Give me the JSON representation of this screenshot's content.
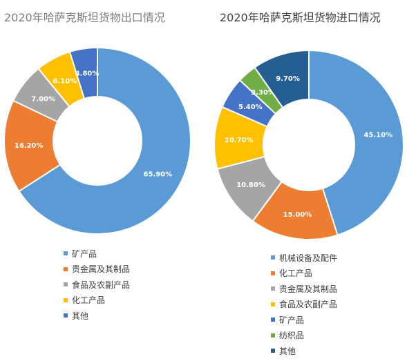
{
  "chart_data": [
    {
      "type": "pie",
      "title": "2020年哈萨克斯坦货物出口情况",
      "legend_position": "bottom",
      "categories": [
        "矿产品",
        "贵金属及其制品",
        "食品及农副产品",
        "化工产品",
        "其他"
      ],
      "values": [
        65.9,
        16.2,
        7.0,
        6.1,
        4.8
      ],
      "labels": [
        "65.90%",
        "16.20%",
        "7.00%",
        "6.10%",
        "4.80%"
      ],
      "colors": [
        "#5b9bd5",
        "#ed7d31",
        "#a5a5a5",
        "#ffc000",
        "#4472c4"
      ]
    },
    {
      "type": "pie",
      "title": "2020年哈萨克斯坦货物进口情况",
      "legend_position": "bottom",
      "categories": [
        "机械设备及配件",
        "化工产品",
        "贵金属及其制品",
        "食品及农副产品",
        "矿产品",
        "纺织品",
        "其他"
      ],
      "values": [
        45.1,
        15.0,
        10.8,
        10.7,
        5.4,
        3.3,
        9.7
      ],
      "labels": [
        "45.10%",
        "15.00%",
        "10.80%",
        "10.70%",
        "5.40%",
        "3.30%",
        "9.70%"
      ],
      "colors": [
        "#5b9bd5",
        "#ed7d31",
        "#a5a5a5",
        "#ffc000",
        "#4472c4",
        "#70ad47",
        "#255e91"
      ]
    }
  ]
}
